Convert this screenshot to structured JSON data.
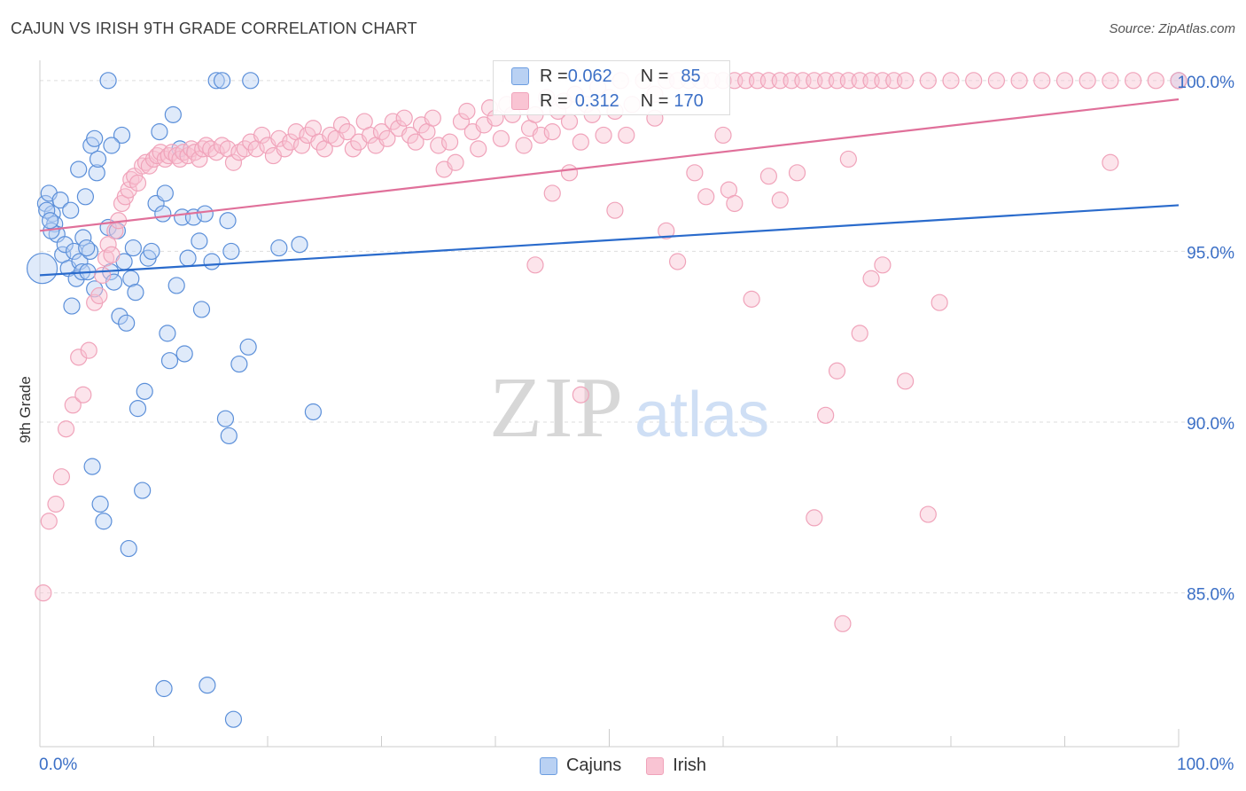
{
  "title": "CAJUN VS IRISH 9TH GRADE CORRELATION CHART",
  "source": "Source: ZipAtlas.com",
  "watermark": {
    "zip": "ZIP",
    "atlas": "atlas"
  },
  "colors": {
    "cajun": "#6c9de0",
    "cajun_line": "#2a6bcc",
    "irish": "#f0a3ba",
    "irish_line": "#e0709a",
    "axis_text": "#3b6fc6"
  },
  "legend_top": {
    "cajun": {
      "r_label": "R = ",
      "r_value": "0.062",
      "n_label": "N = ",
      "n_value": "85"
    },
    "irish": {
      "r_label": "R = ",
      "r_value": "0.312",
      "n_label": "N = ",
      "n_value": "170"
    }
  },
  "chart_data": {
    "type": "scatter",
    "title": "CAJUN VS IRISH 9TH GRADE CORRELATION CHART",
    "xlabel": "",
    "ylabel": "9th Grade",
    "xlim": [
      0,
      100
    ],
    "ylim": [
      80.5,
      100.8
    ],
    "x_tick_labels": [
      "0.0%",
      "100.0%"
    ],
    "y_ticks": [
      85,
      90,
      95,
      100
    ],
    "y_tick_labels": [
      "85.0%",
      "90.0%",
      "95.0%",
      "100.0%"
    ],
    "grid": true,
    "legend": [
      "Cajuns",
      "Irish"
    ],
    "series": [
      {
        "name": "Cajuns",
        "trend": {
          "x0": 0,
          "y0": 94.3,
          "x1": 100,
          "y1": 96.35
        },
        "points": [
          [
            0.2,
            94.5,
            "L"
          ],
          [
            0.5,
            96.4
          ],
          [
            0.8,
            96.7
          ],
          [
            1.1,
            96.1
          ],
          [
            1.3,
            95.8
          ],
          [
            1.5,
            95.5
          ],
          [
            1.8,
            96.5
          ],
          [
            2.0,
            94.9
          ],
          [
            2.2,
            95.2
          ],
          [
            2.5,
            94.5
          ],
          [
            2.7,
            96.2
          ],
          [
            2.8,
            93.4
          ],
          [
            3.0,
            95.0
          ],
          [
            3.2,
            94.2
          ],
          [
            3.4,
            97.4
          ],
          [
            3.5,
            94.7
          ],
          [
            3.7,
            94.4
          ],
          [
            3.8,
            95.4
          ],
          [
            4.0,
            96.6
          ],
          [
            4.2,
            94.4
          ],
          [
            4.5,
            98.1
          ],
          [
            4.8,
            98.3
          ],
          [
            5.0,
            97.3
          ],
          [
            5.1,
            97.7
          ],
          [
            4.4,
            95.0
          ],
          [
            4.6,
            88.7
          ],
          [
            5.3,
            87.6
          ],
          [
            5.6,
            87.1
          ],
          [
            4.8,
            93.9
          ],
          [
            4.1,
            95.1
          ],
          [
            6.0,
            95.7
          ],
          [
            6.2,
            94.4
          ],
          [
            6.5,
            94.1
          ],
          [
            6.8,
            95.6
          ],
          [
            7.0,
            93.1
          ],
          [
            7.2,
            98.4
          ],
          [
            7.4,
            94.7
          ],
          [
            7.6,
            92.9
          ],
          [
            6.3,
            98.1
          ],
          [
            6.0,
            100.0
          ],
          [
            7.8,
            86.3
          ],
          [
            8.0,
            94.2
          ],
          [
            8.2,
            95.1
          ],
          [
            8.4,
            93.8
          ],
          [
            8.6,
            90.4
          ],
          [
            9.0,
            88.0
          ],
          [
            9.2,
            90.9
          ],
          [
            9.5,
            94.8
          ],
          [
            9.8,
            95.0
          ],
          [
            10.2,
            96.4
          ],
          [
            10.5,
            98.5
          ],
          [
            10.8,
            96.1
          ],
          [
            10.9,
            82.2
          ],
          [
            11.0,
            96.7
          ],
          [
            11.2,
            92.6
          ],
          [
            11.4,
            91.8
          ],
          [
            11.7,
            99.0
          ],
          [
            12.0,
            94.0
          ],
          [
            12.3,
            98.0
          ],
          [
            12.5,
            96.0
          ],
          [
            12.7,
            92.0
          ],
          [
            13.0,
            94.8
          ],
          [
            15.5,
            100.0
          ],
          [
            16.0,
            100.0
          ],
          [
            16.5,
            95.9
          ],
          [
            13.5,
            96.0
          ],
          [
            14.0,
            95.3
          ],
          [
            14.2,
            93.3
          ],
          [
            14.5,
            96.1
          ],
          [
            14.7,
            82.3
          ],
          [
            15.1,
            94.7
          ],
          [
            16.3,
            90.1
          ],
          [
            16.6,
            89.6
          ],
          [
            17.0,
            81.3
          ],
          [
            17.5,
            91.7
          ],
          [
            18.5,
            100.0
          ],
          [
            18.3,
            92.2
          ],
          [
            16.8,
            95.0
          ],
          [
            21.0,
            95.1
          ],
          [
            22.8,
            95.2
          ],
          [
            24.0,
            90.3
          ],
          [
            1.0,
            95.6
          ],
          [
            0.6,
            96.2
          ],
          [
            0.9,
            95.9
          ],
          [
            100.0,
            100.0
          ]
        ]
      },
      {
        "name": "Irish",
        "trend": {
          "x0": 0,
          "y0": 95.6,
          "x1": 100,
          "y1": 99.45
        },
        "points": [
          [
            0.3,
            85.0
          ],
          [
            0.8,
            87.1
          ],
          [
            1.4,
            87.6
          ],
          [
            1.9,
            88.4
          ],
          [
            2.3,
            89.8
          ],
          [
            2.9,
            90.5
          ],
          [
            3.4,
            91.9
          ],
          [
            3.8,
            90.8
          ],
          [
            4.3,
            92.1
          ],
          [
            4.8,
            93.5
          ],
          [
            5.2,
            93.7
          ],
          [
            5.5,
            94.3
          ],
          [
            5.8,
            94.8
          ],
          [
            6.0,
            95.2
          ],
          [
            6.3,
            94.9
          ],
          [
            6.6,
            95.6
          ],
          [
            6.9,
            95.9
          ],
          [
            7.2,
            96.4
          ],
          [
            7.5,
            96.6
          ],
          [
            7.8,
            96.8
          ],
          [
            8.0,
            97.1
          ],
          [
            8.3,
            97.2
          ],
          [
            8.6,
            97.0
          ],
          [
            9.0,
            97.5
          ],
          [
            9.3,
            97.6
          ],
          [
            9.6,
            97.5
          ],
          [
            10.0,
            97.7
          ],
          [
            10.3,
            97.8
          ],
          [
            10.6,
            97.9
          ],
          [
            11.0,
            97.7
          ],
          [
            11.3,
            97.8
          ],
          [
            11.6,
            97.9
          ],
          [
            12.0,
            97.8
          ],
          [
            12.3,
            97.7
          ],
          [
            12.6,
            97.9
          ],
          [
            13.0,
            97.8
          ],
          [
            13.3,
            98.0
          ],
          [
            13.6,
            97.9
          ],
          [
            14.0,
            97.7
          ],
          [
            14.3,
            98.0
          ],
          [
            14.6,
            98.1
          ],
          [
            15.0,
            98.0
          ],
          [
            15.5,
            97.9
          ],
          [
            16.0,
            98.1
          ],
          [
            16.5,
            98.0
          ],
          [
            17.0,
            97.6
          ],
          [
            17.5,
            97.9
          ],
          [
            18.0,
            98.0
          ],
          [
            18.5,
            98.2
          ],
          [
            19.0,
            98.0
          ],
          [
            19.5,
            98.4
          ],
          [
            20.0,
            98.1
          ],
          [
            20.5,
            97.8
          ],
          [
            21.0,
            98.3
          ],
          [
            21.5,
            98.0
          ],
          [
            22.0,
            98.2
          ],
          [
            22.5,
            98.5
          ],
          [
            23.0,
            98.1
          ],
          [
            23.5,
            98.4
          ],
          [
            24.0,
            98.6
          ],
          [
            24.5,
            98.2
          ],
          [
            25.0,
            98.0
          ],
          [
            25.5,
            98.4
          ],
          [
            26.0,
            98.3
          ],
          [
            26.5,
            98.7
          ],
          [
            27.0,
            98.5
          ],
          [
            27.5,
            98.0
          ],
          [
            28.0,
            98.2
          ],
          [
            28.5,
            98.8
          ],
          [
            29.0,
            98.4
          ],
          [
            29.5,
            98.1
          ],
          [
            30.0,
            98.5
          ],
          [
            30.5,
            98.3
          ],
          [
            31.0,
            98.8
          ],
          [
            31.5,
            98.6
          ],
          [
            32.0,
            98.9
          ],
          [
            32.5,
            98.4
          ],
          [
            33.0,
            98.2
          ],
          [
            33.5,
            98.7
          ],
          [
            34.0,
            98.5
          ],
          [
            34.5,
            98.9
          ],
          [
            35.0,
            98.1
          ],
          [
            35.5,
            97.4
          ],
          [
            36.0,
            98.2
          ],
          [
            36.5,
            97.6
          ],
          [
            37.0,
            98.8
          ],
          [
            37.5,
            99.1
          ],
          [
            38.0,
            98.5
          ],
          [
            38.5,
            98.0
          ],
          [
            39.0,
            98.7
          ],
          [
            39.5,
            99.2
          ],
          [
            40.0,
            98.9
          ],
          [
            40.5,
            98.3
          ],
          [
            41.0,
            99.3
          ],
          [
            41.5,
            99.0
          ],
          [
            42.0,
            99.4
          ],
          [
            42.5,
            98.1
          ],
          [
            43.0,
            98.6
          ],
          [
            43.5,
            99.0
          ],
          [
            44.0,
            98.4
          ],
          [
            44.5,
            99.5
          ],
          [
            45.0,
            98.5
          ],
          [
            45.5,
            99.1
          ],
          [
            46.0,
            99.4
          ],
          [
            46.5,
            98.8
          ],
          [
            47.0,
            99.6
          ],
          [
            47.5,
            98.2
          ],
          [
            48.0,
            99.3
          ],
          [
            48.5,
            99.0
          ],
          [
            49.0,
            99.8
          ],
          [
            49.5,
            98.4
          ],
          [
            50.0,
            99.5
          ],
          [
            50.5,
            99.1
          ],
          [
            51.0,
            100.0
          ],
          [
            52.0,
            99.3
          ],
          [
            53.0,
            100.0
          ],
          [
            54.0,
            99.6
          ],
          [
            55.0,
            100.0
          ],
          [
            56.0,
            100.0
          ],
          [
            57.0,
            100.0
          ],
          [
            58.0,
            100.0
          ],
          [
            59.0,
            100.0
          ],
          [
            60.0,
            100.0
          ],
          [
            61.0,
            100.0
          ],
          [
            62.0,
            100.0
          ],
          [
            63.0,
            100.0
          ],
          [
            64.0,
            100.0
          ],
          [
            65.0,
            100.0
          ],
          [
            66.0,
            100.0
          ],
          [
            67.0,
            100.0
          ],
          [
            68.0,
            100.0
          ],
          [
            69.0,
            100.0
          ],
          [
            70.0,
            100.0
          ],
          [
            71.0,
            100.0
          ],
          [
            72.0,
            100.0
          ],
          [
            73.0,
            100.0
          ],
          [
            74.0,
            100.0
          ],
          [
            75.0,
            100.0
          ],
          [
            76.0,
            100.0
          ],
          [
            78.0,
            100.0
          ],
          [
            80.0,
            100.0
          ],
          [
            82.0,
            100.0
          ],
          [
            84.0,
            100.0
          ],
          [
            86.0,
            100.0
          ],
          [
            88.0,
            100.0
          ],
          [
            90.0,
            100.0
          ],
          [
            92.0,
            100.0
          ],
          [
            94.0,
            100.0
          ],
          [
            96.0,
            100.0
          ],
          [
            98.0,
            100.0
          ],
          [
            100.0,
            100.0
          ],
          [
            43.5,
            94.6
          ],
          [
            45.0,
            96.7
          ],
          [
            46.5,
            97.3
          ],
          [
            50.5,
            96.2
          ],
          [
            51.5,
            98.4
          ],
          [
            55.0,
            95.6
          ],
          [
            56.0,
            94.7
          ],
          [
            57.5,
            97.3
          ],
          [
            58.5,
            96.6
          ],
          [
            60.5,
            96.8
          ],
          [
            61.0,
            96.4
          ],
          [
            62.5,
            93.6
          ],
          [
            64.0,
            97.2
          ],
          [
            65.0,
            96.5
          ],
          [
            66.5,
            97.3
          ],
          [
            68.0,
            87.2
          ],
          [
            69.0,
            90.2
          ],
          [
            70.0,
            91.5
          ],
          [
            70.5,
            84.1
          ],
          [
            71.0,
            97.7
          ],
          [
            72.0,
            92.6
          ],
          [
            73.0,
            94.2
          ],
          [
            74.0,
            94.6
          ],
          [
            76.0,
            91.2
          ],
          [
            78.0,
            87.3
          ],
          [
            79.0,
            93.5
          ],
          [
            94.0,
            97.6
          ],
          [
            47.5,
            90.8
          ],
          [
            54.0,
            98.9
          ],
          [
            60.0,
            98.4
          ]
        ]
      }
    ]
  },
  "bottom_legend": {
    "cajun": "Cajuns",
    "irish": "Irish"
  }
}
